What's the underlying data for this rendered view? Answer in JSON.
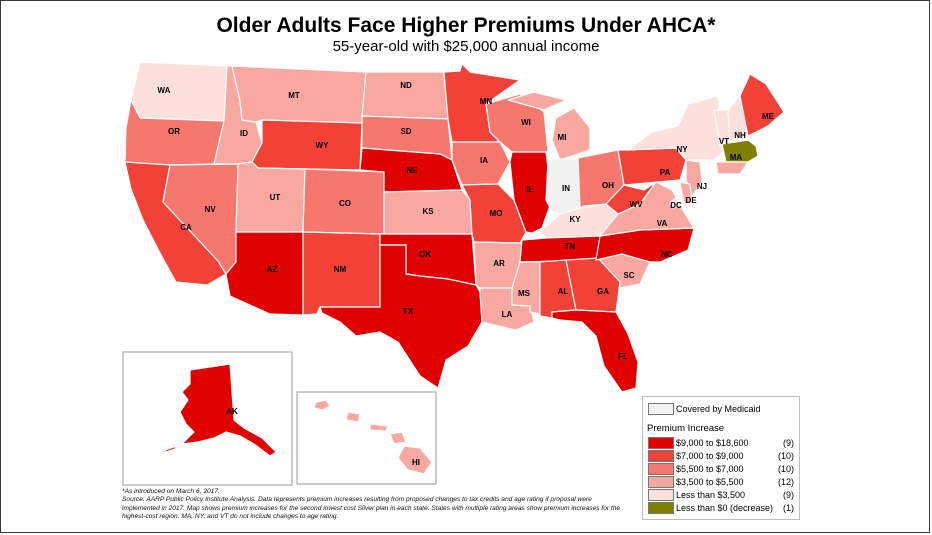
{
  "title": "Older Adults Face Higher Premiums Under AHCA*",
  "subtitle": "55-year-old with $25,000 annual income",
  "colors": {
    "c9000": "#e00000",
    "c7000": "#f24137",
    "c5500": "#f6776d",
    "c3500": "#f9a8a1",
    "clt3500": "#fde0dc",
    "cneg": "#7f7f00",
    "medicaid": "#f1f1f1"
  },
  "states": {
    "WA": "WA",
    "OR": "OR",
    "CA": "CA",
    "NV": "NV",
    "ID": "ID",
    "MT": "MT",
    "WY": "WY",
    "UT": "UT",
    "AZ": "AZ",
    "CO": "CO",
    "NM": "NM",
    "ND": "ND",
    "SD": "SD",
    "NE": "NE",
    "KS": "KS",
    "OK": "OK",
    "TX": "TX",
    "MN": "MN",
    "IA": "IA",
    "MO": "MO",
    "AR": "AR",
    "LA": "LA",
    "WI": "WI",
    "IL": "IL",
    "MS": "MS",
    "MI": "MI",
    "IN": "IN",
    "KY": "KY",
    "TN": "TN",
    "AL": "AL",
    "GA": "GA",
    "FL": "FL",
    "OH": "OH",
    "WV": "WV",
    "VA": "VA",
    "NC": "NC",
    "SC": "SC",
    "PA": "PA",
    "NY": "NY",
    "NJ": "NJ",
    "DE": "DE",
    "DC": "DC",
    "VT": "VT",
    "NH": "NH",
    "ME": "ME",
    "MA": "MA",
    "AK": "AK",
    "HI": "HI"
  },
  "legend": {
    "medicaid_label": "Covered by Medicaid",
    "heading": "Premium Increase",
    "items": [
      {
        "label": "$9,000 to $18,600",
        "count": "(9)"
      },
      {
        "label": "$7,000 to $9,000",
        "count": "(10)"
      },
      {
        "label": "$5,500 to $7,000",
        "count": "(10)"
      },
      {
        "label": "$3,500 to $5,500",
        "count": "(12)"
      },
      {
        "label": "Less than $3,500",
        "count": "(9)"
      },
      {
        "label": "Less than $0 (decrease)",
        "count": "(1)"
      }
    ]
  },
  "footnote": {
    "line1": "*As introduced on March 6, 2017.",
    "line2": "Source: AARP Public Policy Institute Analysis. Data represents premium increases resulting from proposed changes to tax credits and age rating if proposal were implemented in 2017. Map shows premium increases for the second lowest cost Silver plan in each state. States with multiple rating areas show premium increases for the highest-cost region. MA, NY, and VT do not include changes to age rating."
  }
}
